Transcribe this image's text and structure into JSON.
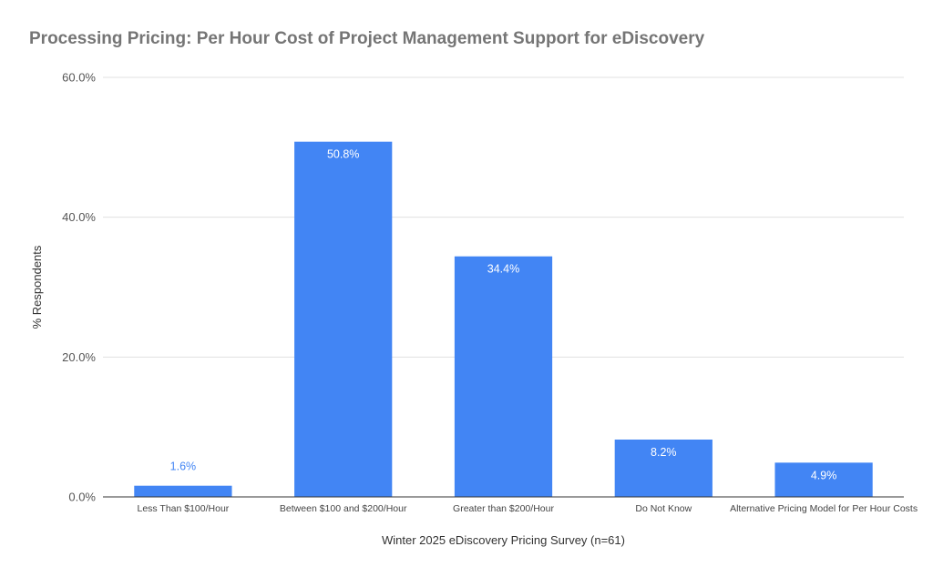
{
  "chart_data": {
    "type": "bar",
    "title": "Processing Pricing: Per Hour Cost of Project Management Support for eDiscovery",
    "xlabel": "Winter 2025 eDiscovery Pricing Survey (n=61)",
    "ylabel": "% Respondents",
    "categories": [
      "Less Than $100/Hour",
      "Between $100 and $200/Hour",
      "Greater than $200/Hour",
      "Do Not Know",
      "Alternative Pricing Model for Per Hour Costs"
    ],
    "values": [
      1.6,
      50.8,
      34.4,
      8.2,
      4.9
    ],
    "data_labels": [
      "1.6%",
      "50.8%",
      "34.4%",
      "8.2%",
      "4.9%"
    ],
    "ylim": [
      0,
      60
    ],
    "yticks": [
      0,
      20,
      40,
      60
    ],
    "ytick_labels": [
      "0.0%",
      "20.0%",
      "40.0%",
      "60.0%"
    ],
    "grid": true,
    "legend": "none",
    "colors": {
      "bar": "#4285f4",
      "label_inside": "#ffffff",
      "label_outside": "#4285f4",
      "grid": "#e0e0e0",
      "axis": "#333333"
    }
  }
}
